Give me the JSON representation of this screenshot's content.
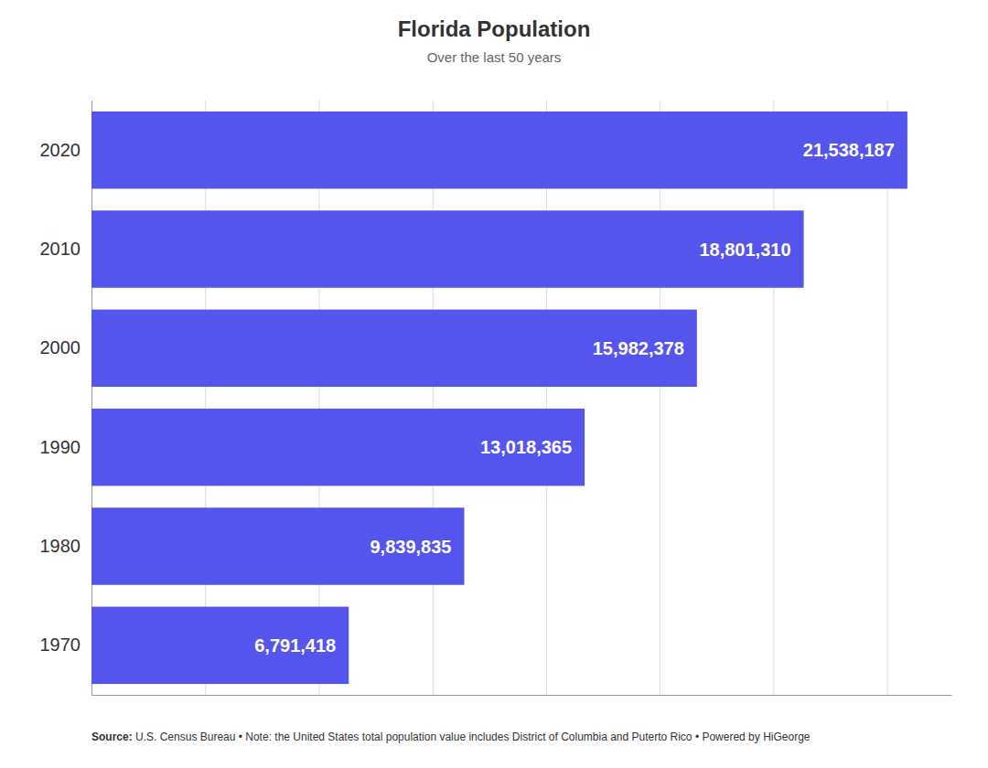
{
  "chart_data": {
    "type": "bar",
    "orientation": "horizontal",
    "title": "Florida Population",
    "subtitle": "Over the last 50 years",
    "categories": [
      "2020",
      "2010",
      "2000",
      "1990",
      "1980",
      "1970"
    ],
    "values": [
      21538187,
      18801310,
      15982378,
      13018365,
      9839835,
      6791418
    ],
    "value_labels": [
      "21,538,187",
      "18,801,310",
      "15,982,378",
      "13,018,365",
      "9,839,835",
      "6,791,418"
    ],
    "data_labels": true,
    "color": "#5555ee",
    "xlim": [
      0,
      22700000
    ],
    "xticks": [
      0,
      3000000,
      6000000,
      9000000,
      12000000,
      15000000,
      18000000,
      21000000
    ],
    "tick_labels": "y",
    "grid": true,
    "annotations": [
      "Source:",
      " U.S. Census Bureau • Note: the United States total population value includes District of Columbia and Puterto Rico • ",
      "Powered by HiGeorge"
    ]
  }
}
